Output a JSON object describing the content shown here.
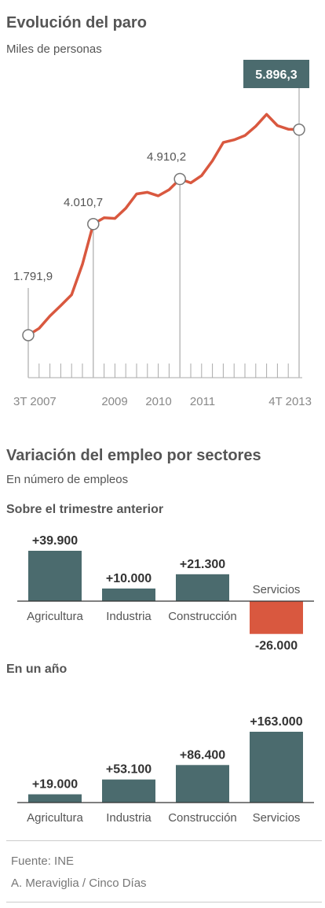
{
  "header": {
    "title": "Evolución del paro",
    "subtitle": "Miles de personas"
  },
  "colors": {
    "line": "#d9583f",
    "bar": "#4b6b6e",
    "negative": "#d9583f",
    "grid": "#aaaaaa",
    "callout_bg": "#4b6b6e"
  },
  "chart_data": [
    {
      "type": "line",
      "title": "Evolución del paro",
      "subtitle": "Miles de personas",
      "x_tick_labels": [
        "3T 2007",
        "2009",
        "2010",
        "2011",
        "4T 2013"
      ],
      "x": [
        "3T 2007",
        "4T 2007",
        "1T 2008",
        "2T 2008",
        "3T 2008",
        "4T 2008",
        "1T 2009",
        "2T 2009",
        "3T 2009",
        "4T 2009",
        "1T 2010",
        "2T 2010",
        "3T 2010",
        "4T 2010",
        "1T 2011",
        "2T 2011",
        "3T 2011",
        "4T 2011",
        "1T 2012",
        "2T 2012",
        "3T 2012",
        "4T 2012",
        "1T 2013",
        "2T 2013",
        "3T 2013",
        "4T 2013"
      ],
      "values": [
        1791.9,
        1927.6,
        2174.2,
        2381.5,
        2598.8,
        3207.9,
        4010.7,
        4137.5,
        4123.3,
        4326.5,
        4612.7,
        4645.5,
        4574.7,
        4696.6,
        4910.2,
        4833.7,
        4978.3,
        5273.6,
        5639.5,
        5693.1,
        5778.1,
        5965.4,
        6202.7,
        5977.5,
        5904.7,
        5896.3
      ],
      "labeled_points": [
        {
          "label": "1.791,9"
        },
        {
          "label": "4.010,7"
        },
        {
          "label": "4.910,2"
        },
        {
          "label": "5.896,3"
        }
      ],
      "ylim": [
        1100,
        6600
      ]
    },
    {
      "type": "bar",
      "title": "Variación del empleo por sectores",
      "subtitle": "En número de empleos",
      "panel_title": "Sobre el trimestre anterior",
      "categories": [
        "Agricultura",
        "Industria",
        "Construcción",
        "Servicios"
      ],
      "values": [
        39900,
        10000,
        21300,
        -26000
      ],
      "value_labels": [
        "+39.900",
        "+10.000",
        "+21.300",
        "-26.000"
      ]
    },
    {
      "type": "bar",
      "panel_title": "En un año",
      "categories": [
        "Agricultura",
        "Industria",
        "Construcción",
        "Servicios"
      ],
      "values": [
        19000,
        53100,
        86400,
        163000
      ],
      "value_labels": [
        "+19.000",
        "+53.100",
        "+86.400",
        "+163.000"
      ]
    }
  ],
  "section2": {
    "title": "Variación del empleo por sectores",
    "subtitle": "En número de empleos",
    "panel1_title": "Sobre el trimestre anterior",
    "panel2_title": "En un año"
  },
  "footer": {
    "source": "Fuente: INE",
    "credit": "A. Meraviglia / Cinco Días"
  }
}
